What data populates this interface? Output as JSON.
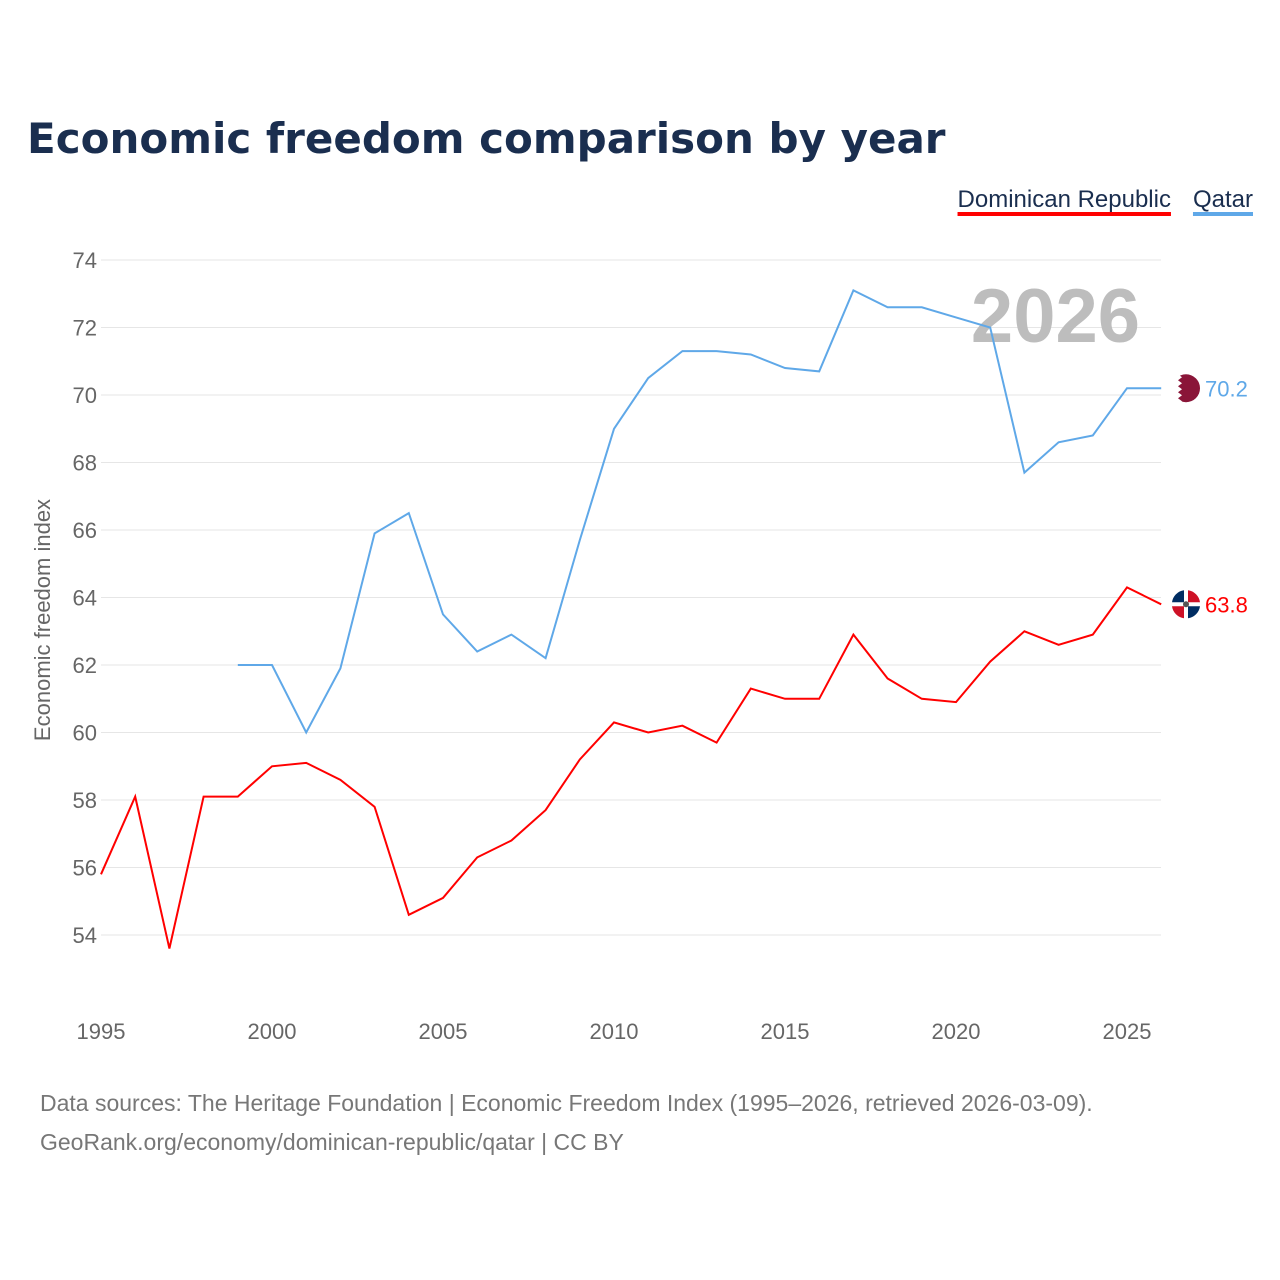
{
  "chart_data": {
    "type": "line",
    "title": "Economic freedom comparison by year",
    "ylabel": "Economic freedom index",
    "xlabel": "",
    "ylim": [
      52,
      74.5
    ],
    "xlim": [
      1995,
      2026
    ],
    "yticks": [
      54,
      56,
      58,
      60,
      62,
      64,
      66,
      68,
      70,
      72,
      74
    ],
    "xticks": [
      1995,
      2000,
      2005,
      2010,
      2015,
      2020,
      2025
    ],
    "grid": true,
    "legend_position": "top-right",
    "year_watermark": "2026",
    "series": [
      {
        "name": "Dominican Republic",
        "color": "#ff0000",
        "end_label": "63.8",
        "x": [
          1995,
          1996,
          1997,
          1998,
          1999,
          2000,
          2001,
          2002,
          2003,
          2004,
          2005,
          2006,
          2007,
          2008,
          2009,
          2010,
          2011,
          2012,
          2013,
          2014,
          2015,
          2016,
          2017,
          2018,
          2019,
          2020,
          2021,
          2022,
          2023,
          2024,
          2025,
          2026
        ],
        "values": [
          55.8,
          58.1,
          53.6,
          58.1,
          58.1,
          59.0,
          59.1,
          58.6,
          57.8,
          54.6,
          55.1,
          56.3,
          56.8,
          57.7,
          59.2,
          60.3,
          60.0,
          60.2,
          59.7,
          61.3,
          61.0,
          61.0,
          62.9,
          61.6,
          61.0,
          60.9,
          62.1,
          63.0,
          62.6,
          62.9,
          64.3,
          63.8
        ]
      },
      {
        "name": "Qatar",
        "color": "#5fa8e8",
        "end_label": "70.2",
        "x": [
          1999,
          2000,
          2001,
          2002,
          2003,
          2004,
          2005,
          2006,
          2007,
          2008,
          2009,
          2010,
          2011,
          2012,
          2013,
          2014,
          2015,
          2016,
          2017,
          2018,
          2019,
          2020,
          2021,
          2022,
          2023,
          2024,
          2025,
          2026
        ],
        "values": [
          62.0,
          62.0,
          60.0,
          61.9,
          65.9,
          66.5,
          63.5,
          62.4,
          62.9,
          62.2,
          65.7,
          69.0,
          70.5,
          71.3,
          71.3,
          71.2,
          70.8,
          70.7,
          73.1,
          72.6,
          72.6,
          72.3,
          72.0,
          67.7,
          68.6,
          68.8,
          70.2,
          70.2
        ]
      }
    ]
  },
  "footer": {
    "line1": "Data sources: The Heritage Foundation | Economic Freedom Index (1995–2026, retrieved 2026-03-09).",
    "line2": "GeoRank.org/economy/dominican-republic/qatar | CC BY"
  }
}
